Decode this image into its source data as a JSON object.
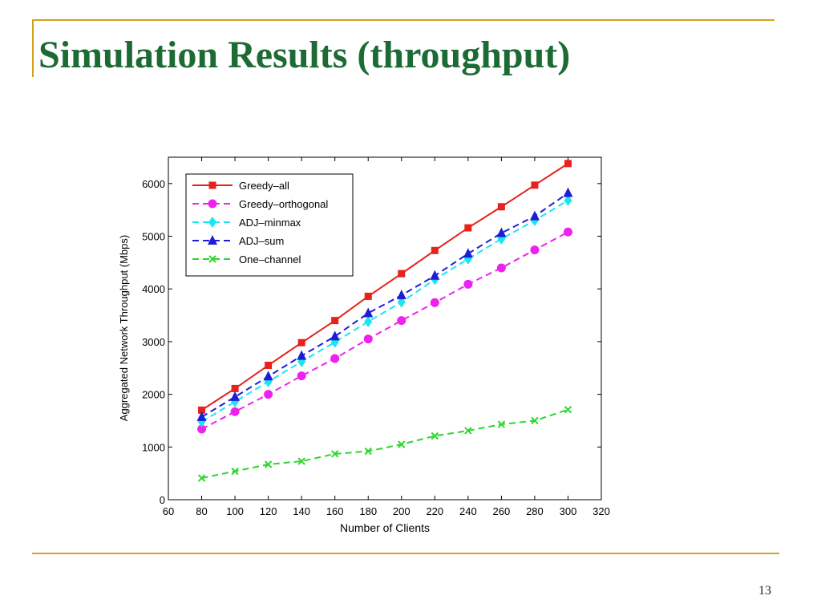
{
  "slide": {
    "title": "Simulation Results (throughput)",
    "page_number": "13"
  },
  "colors": {
    "title": "#1d6b34",
    "rule": "#d4a21a"
  },
  "chart_data": {
    "type": "line",
    "title": "",
    "xlabel": "Number of Clients",
    "ylabel": "Aggregated Network Throughput (Mbps)",
    "xlim": [
      60,
      320
    ],
    "ylim": [
      0,
      6500
    ],
    "x_ticks": [
      60,
      80,
      100,
      120,
      140,
      160,
      180,
      200,
      220,
      240,
      260,
      280,
      300,
      320
    ],
    "y_ticks": [
      0,
      1000,
      2000,
      3000,
      4000,
      5000,
      6000
    ],
    "grid": false,
    "legend_position": "top-left",
    "x": [
      80,
      100,
      120,
      140,
      160,
      180,
      200,
      220,
      240,
      260,
      280,
      300
    ],
    "series": [
      {
        "name": "Greedy–all",
        "color": "#e8211d",
        "dash": "solid",
        "marker": "square",
        "values": [
          1700,
          2110,
          2550,
          2980,
          3400,
          3860,
          4290,
          4730,
          5160,
          5560,
          5970,
          6380
        ]
      },
      {
        "name": "Greedy–orthogonal",
        "color": "#ee22ee",
        "dash": "dashed",
        "marker": "circle",
        "values": [
          1340,
          1670,
          2000,
          2350,
          2680,
          3050,
          3400,
          3740,
          4090,
          4400,
          4740,
          5080
        ]
      },
      {
        "name": "ADJ–minmax",
        "color": "#19e6ee",
        "dash": "dashed",
        "marker": "diamond",
        "values": [
          1480,
          1860,
          2240,
          2620,
          2990,
          3380,
          3750,
          4180,
          4570,
          4950,
          5300,
          5680
        ]
      },
      {
        "name": "ADJ–sum",
        "color": "#1d1dd8",
        "dash": "dashed",
        "marker": "triangle",
        "values": [
          1570,
          1950,
          2340,
          2730,
          3100,
          3540,
          3880,
          4250,
          4670,
          5060,
          5380,
          5820
        ]
      },
      {
        "name": "One–channel",
        "color": "#2ed62e",
        "dash": "dashed",
        "marker": "x",
        "values": [
          410,
          540,
          670,
          730,
          870,
          920,
          1050,
          1210,
          1310,
          1430,
          1500,
          1710
        ]
      }
    ]
  }
}
